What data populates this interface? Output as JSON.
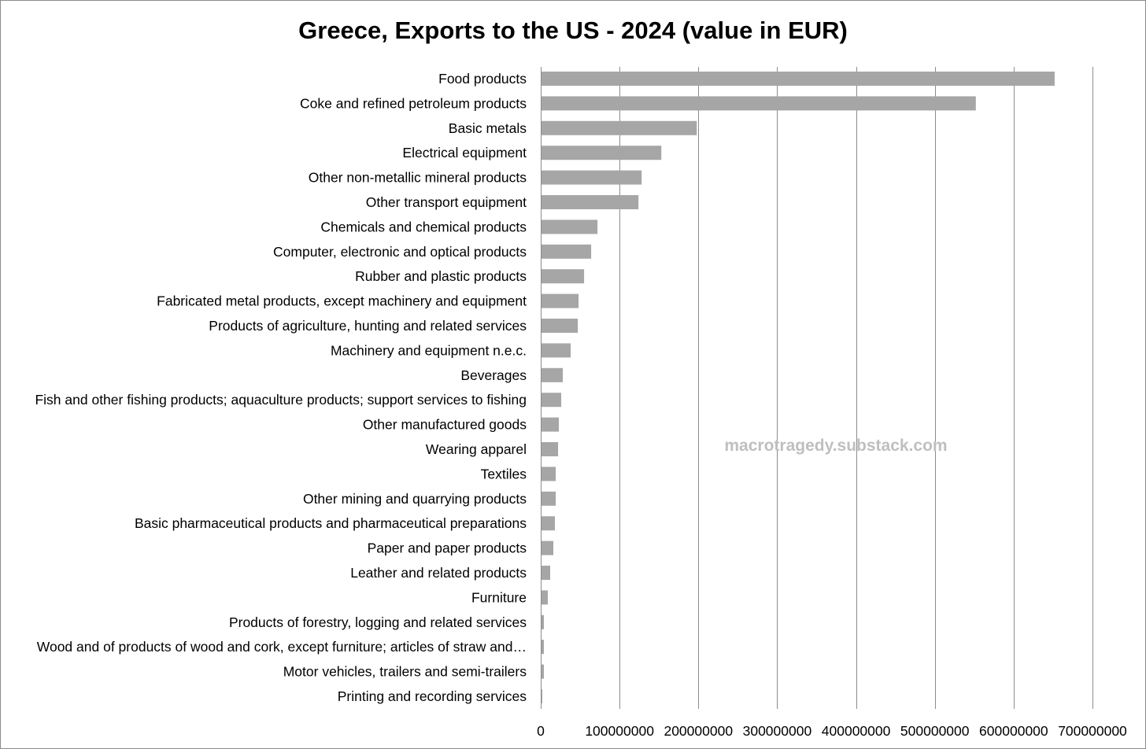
{
  "chart_data": {
    "type": "bar",
    "orientation": "horizontal",
    "title": "Greece, Exports to the US - 2024 (value in EUR)",
    "xlabel": "",
    "ylabel": "",
    "xlim": [
      0,
      700000000
    ],
    "x_ticks": [
      0,
      100000000,
      200000000,
      300000000,
      400000000,
      500000000,
      600000000,
      700000000
    ],
    "x_tick_labels": [
      "0",
      "100000000",
      "200000000",
      "300000000",
      "400000000",
      "500000000",
      "600000000",
      "700000000"
    ],
    "grid": "vertical-major",
    "legend": "none",
    "categories": [
      "Food products",
      "Coke and refined petroleum products",
      "Basic metals",
      "Electrical equipment",
      "Other non-metallic mineral products",
      "Other transport equipment",
      "Chemicals and chemical products",
      "Computer, electronic and optical products",
      "Rubber and plastic products",
      "Fabricated metal products, except machinery and equipment",
      "Products of agriculture, hunting and related services",
      "Machinery and equipment n.e.c.",
      "Beverages",
      "Fish and other fishing products; aquaculture products; support services to fishing",
      "Other manufactured goods",
      "Wearing apparel",
      "Textiles",
      "Other mining and quarrying products",
      "Basic pharmaceutical products and pharmaceutical preparations",
      "Paper and paper products",
      "Leather and related products",
      "Furniture",
      "Products of forestry, logging and related services",
      "Wood and of products of wood and cork, except furniture; articles of straw and…",
      "Motor vehicles, trailers and semi-trailers",
      "Printing and recording services"
    ],
    "values": [
      651000000,
      551000000,
      197000000,
      152000000,
      127000000,
      123000000,
      71000000,
      63000000,
      54000000,
      47000000,
      46000000,
      37000000,
      27000000,
      25000000,
      22000000,
      21000000,
      18000000,
      18000000,
      17000000,
      15000000,
      11000000,
      8000000,
      3000000,
      3000000,
      3000000,
      1000000
    ],
    "bar_color": "#a6a6a6",
    "grid_color": "#8c8c8c",
    "watermark": "macrotragedy.substack.com"
  }
}
